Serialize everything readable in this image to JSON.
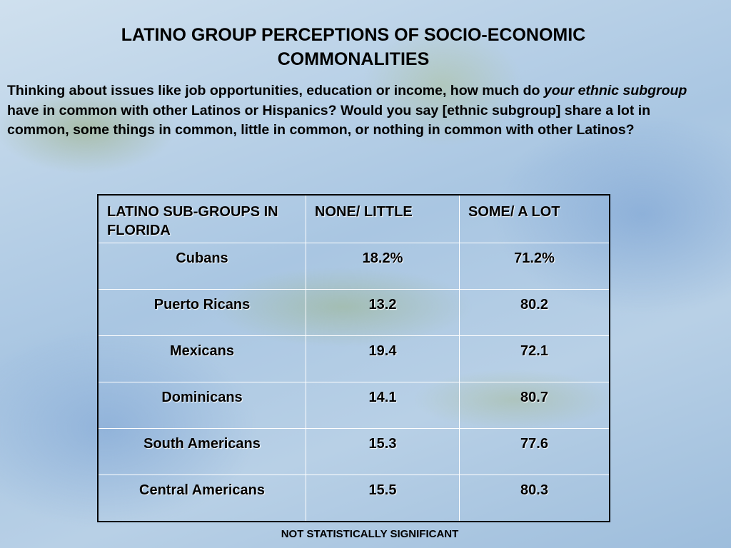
{
  "header": {
    "title_lines": [
      "LATINO GROUP PERCEPTIONS OF SOCIO-ECONOMIC",
      "COMMONALITIES"
    ]
  },
  "question": [
    {
      "text": "Thinking about issues like job opportunities, education or income, how much do ",
      "style": "normal"
    },
    {
      "text": "your ethnic subgroup",
      "style": "italic"
    },
    {
      "text": " have in common with other Latinos or Hispanics? Would you say [ethnic subgroup] share a lot in common, some things in common, little in common, or nothing in common with other Latinos?",
      "style": "normal"
    }
  ],
  "table": {
    "columns": [
      "LATINO SUB-GROUPS IN FLORIDA",
      "NONE/ LITTLE",
      "SOME/ A LOT"
    ],
    "rows": [
      [
        "Cubans",
        "18.2%",
        "71.2%"
      ],
      [
        "Puerto Ricans",
        "13.2",
        "80.2"
      ],
      [
        "Mexicans",
        "19.4",
        "72.1"
      ],
      [
        "Dominicans",
        "14.1",
        "80.7"
      ],
      [
        "South Americans",
        "15.3",
        "77.6"
      ],
      [
        "Central Americans",
        "15.5",
        "80.3"
      ]
    ]
  },
  "footnote": "NOT STATISTICALLY SIGNIFICANT"
}
